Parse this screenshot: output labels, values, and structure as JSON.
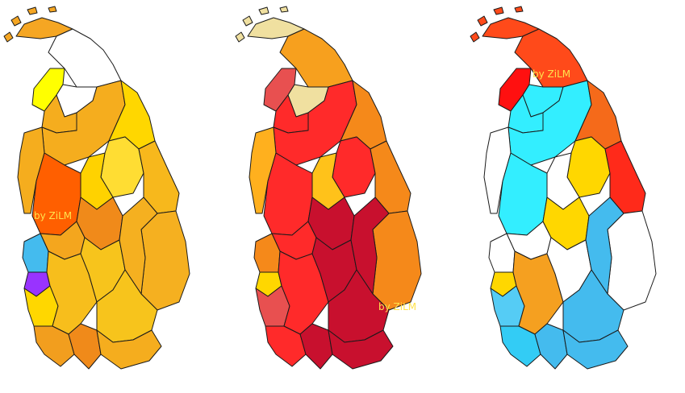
{
  "maps": [
    {
      "id": "map-left",
      "watermark": "by ZiLM",
      "fills": {
        "jaffna": "#f5a623",
        "north": "#ffffff",
        "mannar": "#ffff00",
        "vavuniya": "#ffffff",
        "northwest": "#f5ad1e",
        "anuradhapura": "#f5ad1e",
        "trinco": "#ffd700",
        "polonnaruwa": "#ffdd33",
        "matale": "#ffd200",
        "batticaloa": "#f7b81c",
        "puttalam": "#f5ad1e",
        "kurunegala": "#ff5f00",
        "kegalle": "#f4a61e",
        "kandy": "#f08a1a",
        "ampara": "#f5b020",
        "gampaha": "#44bbee",
        "colombo": "#9933ff",
        "kalutara": "#ffd700",
        "ratnapura": "#f7be1c",
        "nuwaraeliya": "#f7c41c",
        "badulla": "#f5b020",
        "moneragala": "#f7c41c",
        "galle": "#f29e1e",
        "matara": "#f08a1a",
        "hambantota": "#f5ad1e"
      }
    },
    {
      "id": "map-middle",
      "watermark": "by ZiLM",
      "fills": {
        "jaffna": "#f0e0a0",
        "north": "#f7a01e",
        "mannar": "#e85050",
        "vavuniya": "#f0e0a0",
        "northwest": "#ff2a2a",
        "anuradhapura": "#ff2a2a",
        "trinco": "#f5891a",
        "polonnaruwa": "#ff2a2a",
        "matale": "#ffc21a",
        "batticaloa": "#f5891a",
        "puttalam": "#ffb01e",
        "kurunegala": "#ff2a2a",
        "kegalle": "#ff2a2a",
        "kandy": "#c8102e",
        "ampara": "#f5891a",
        "gampaha": "#f5891a",
        "colombo": "#ffd700",
        "kalutara": "#e85050",
        "ratnapura": "#ff2a2a",
        "nuwaraeliya": "#c8102e",
        "badulla": "#c8102e",
        "moneragala": "#c8102e",
        "galle": "#ff2a2a",
        "matara": "#c8102e",
        "hambantota": "#c8102e"
      }
    },
    {
      "id": "map-right",
      "watermark": "by ZiLM",
      "fills": {
        "jaffna": "#ff4a1a",
        "north": "#ff4a1a",
        "mannar": "#ff1010",
        "vavuniya": "#33eeff",
        "northwest": "#33eeff",
        "anuradhapura": "#33eeff",
        "trinco": "#f56a1a",
        "polonnaruwa": "#ffd700",
        "matale": "#ffffff",
        "batticaloa": "#ff2a1a",
        "puttalam": "#ffffff",
        "kurunegala": "#33eeff",
        "kegalle": "#ffffff",
        "kandy": "#ffd700",
        "ampara": "#ffffff",
        "gampaha": "#ffffff",
        "colombo": "#ffd700",
        "kalutara": "#55ccf5",
        "ratnapura": "#f5a020",
        "nuwaraeliya": "#ffffff",
        "badulla": "#44bbee",
        "moneragala": "#44bbee",
        "galle": "#33ccf5",
        "matara": "#44bbee",
        "hambantota": "#44bbee"
      }
    }
  ]
}
